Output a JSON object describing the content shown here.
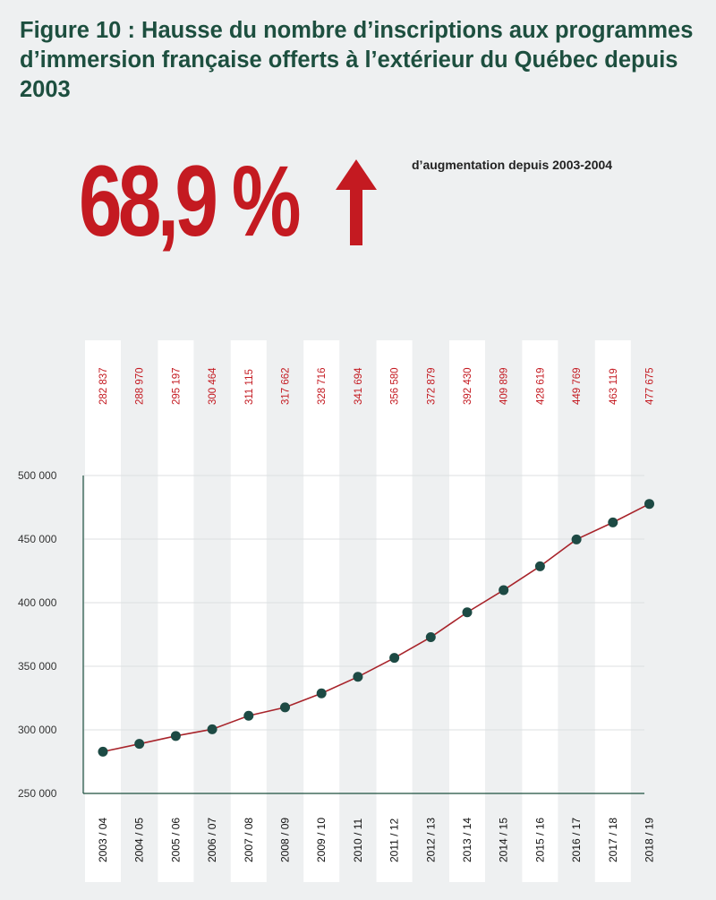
{
  "header": {
    "title": "Figure 10 : Hausse du nombre d’inscriptions aux programmes d’immersion française offerts à l’extérieur du Québec depuis 2003",
    "big_value": "68,9 %",
    "increase_label": "d’augmentation depuis 2003-2004"
  },
  "colors": {
    "title": "#1d4f3f",
    "accent": "#c41a21",
    "point": "#1d4a44",
    "line": "#a8242b",
    "background": "#eef0f1",
    "column": "#ffffff"
  },
  "chart_data": {
    "type": "line",
    "categories": [
      "2003 / 04",
      "2004 / 05",
      "2005 / 06",
      "2006 / 07",
      "2007 / 08",
      "2008 / 09",
      "2009 / 10",
      "2010 / 11",
      "2011 / 12",
      "2012 / 13",
      "2013 / 14",
      "2014 / 15",
      "2015 / 16",
      "2016 / 17",
      "2017 / 18",
      "2018 / 19"
    ],
    "values": [
      282837,
      288970,
      295197,
      300464,
      311115,
      317662,
      328716,
      341694,
      356580,
      372879,
      392430,
      409899,
      428619,
      449769,
      463119,
      477675
    ],
    "value_labels": [
      "282 837",
      "288 970",
      "295 197",
      "300 464",
      "311 115",
      "317 662",
      "328 716",
      "341 694",
      "356 580",
      "372 879",
      "392 430",
      "409 899",
      "428 619",
      "449 769",
      "463 119",
      "477 675"
    ],
    "yticks": [
      250000,
      300000,
      350000,
      400000,
      450000,
      500000
    ],
    "ytick_labels": [
      "250 000",
      "300 000",
      "350 000",
      "400 000",
      "450 000",
      "500 000"
    ],
    "ylim": [
      250000,
      500000
    ],
    "xlabel": "",
    "ylabel": "",
    "grid": true,
    "legend": "none"
  }
}
